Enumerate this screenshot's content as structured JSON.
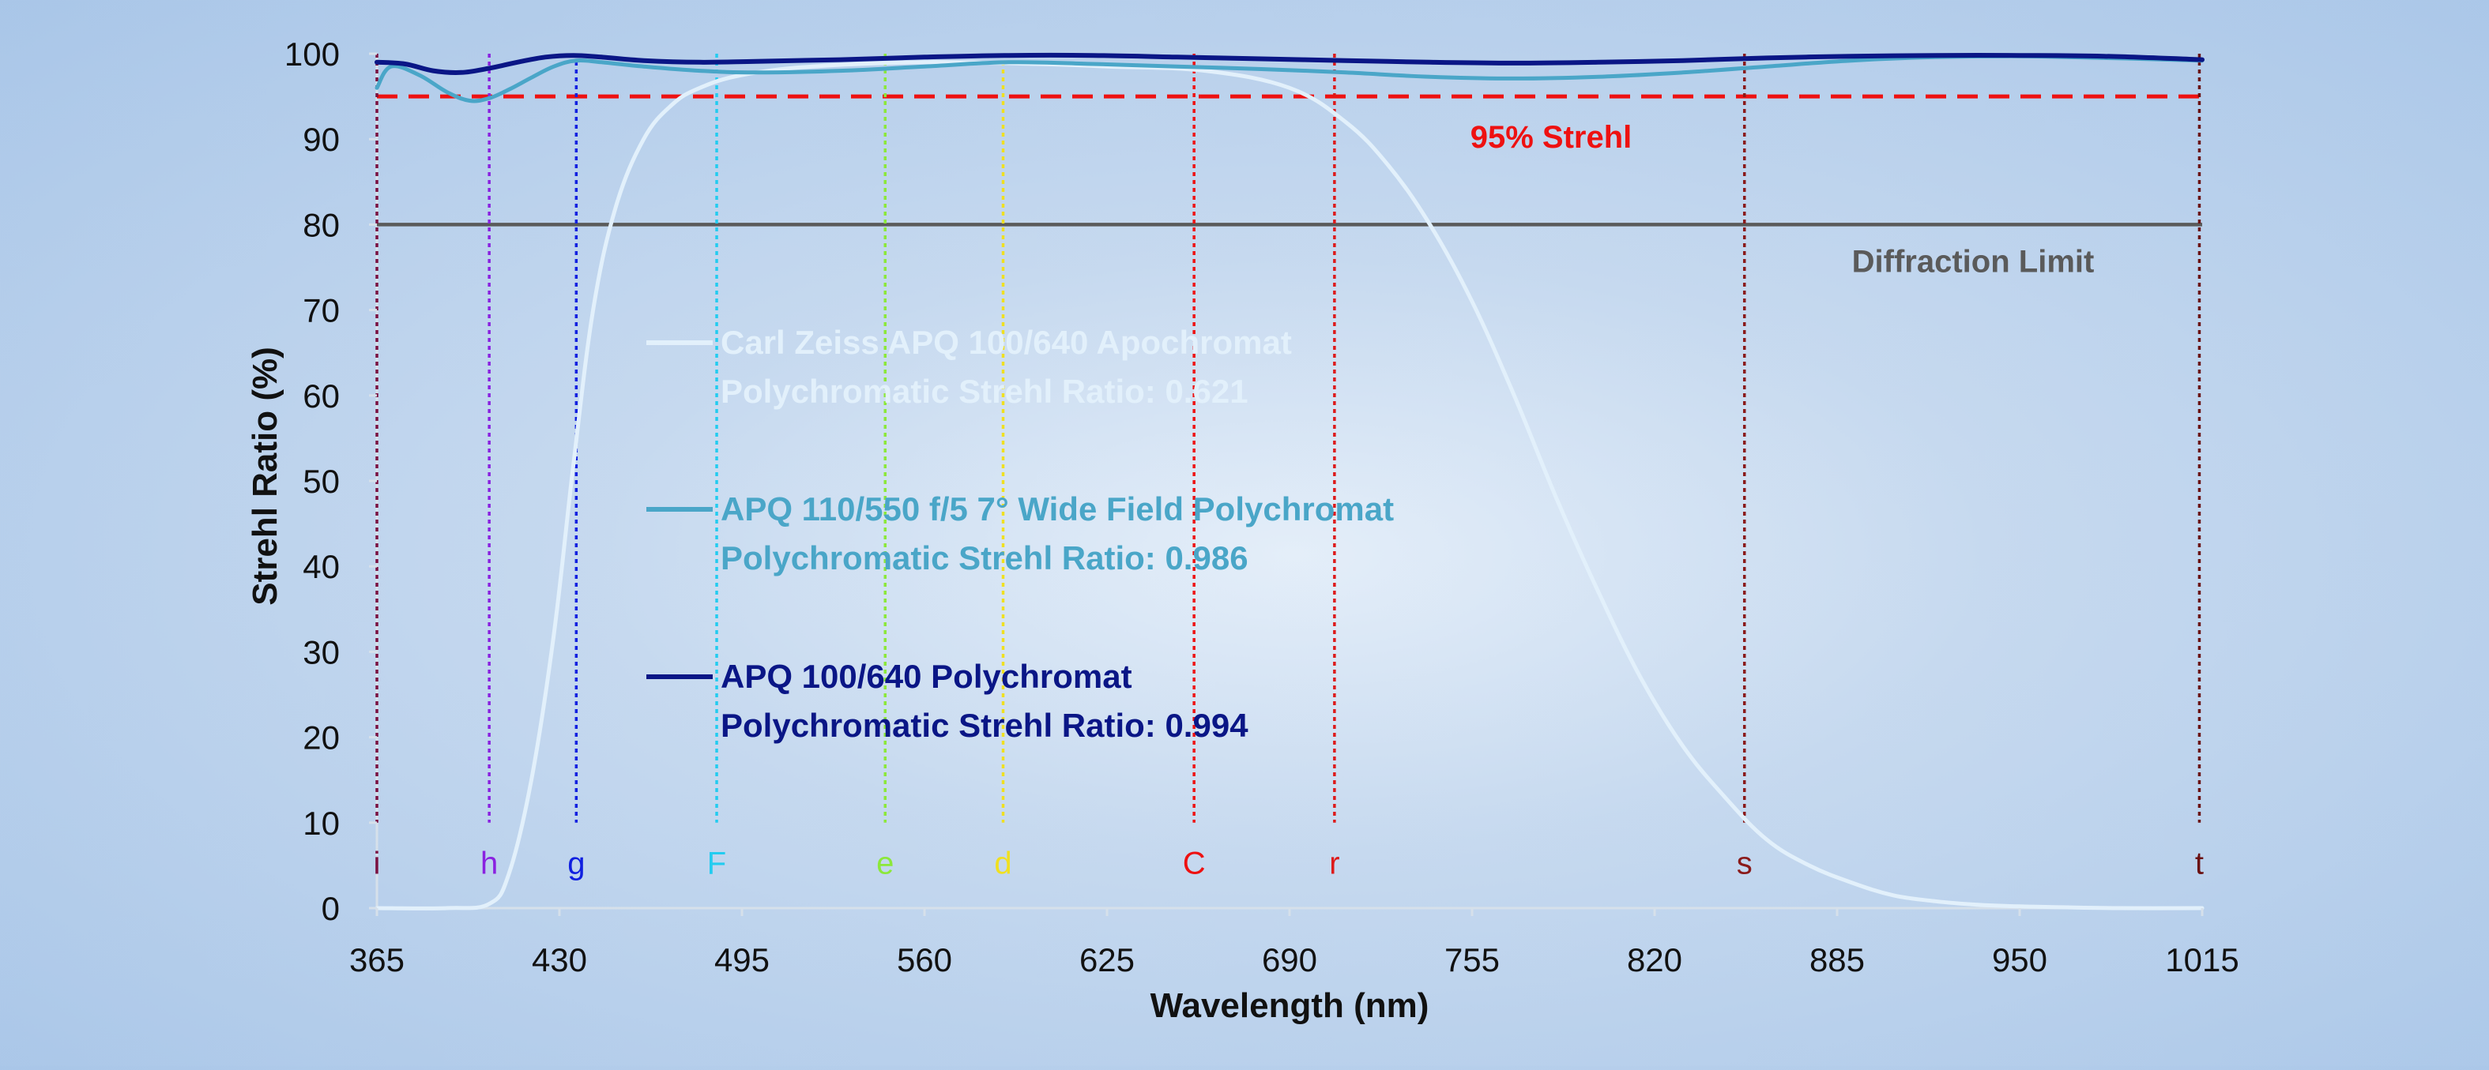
{
  "chart_data": {
    "type": "line",
    "xlabel": "Wavelength (nm)",
    "ylabel": "Strehl Ratio (%)",
    "xlim": [
      365,
      1015
    ],
    "ylim": [
      0,
      100
    ],
    "x_ticks": [
      365,
      430,
      495,
      560,
      625,
      690,
      755,
      820,
      885,
      950,
      1015
    ],
    "y_ticks": [
      0,
      10,
      20,
      30,
      40,
      50,
      60,
      70,
      80,
      90,
      100
    ],
    "grid": false,
    "series": [
      {
        "legend_line1": "Carl Zeiss APQ 100/640 Apochromat",
        "legend_line2": "Polychromatic Strehl Ratio: 0.621",
        "color": "#e2f0fb",
        "x": [
          365,
          390,
          405,
          412,
          420,
          428,
          435,
          442,
          450,
          460,
          470,
          480,
          495,
          520,
          560,
          600,
          625,
          660,
          690,
          710,
          725,
          740,
          755,
          770,
          785,
          800,
          815,
          830,
          845,
          860,
          875,
          890,
          905,
          920,
          935,
          950,
          965,
          985,
          1015
        ],
        "y": [
          0,
          0,
          0.5,
          4,
          15,
          32,
          52,
          70,
          82,
          90,
          94,
          96,
          97.5,
          98.5,
          99,
          98.8,
          98.5,
          98,
          96,
          92,
          87,
          80,
          71,
          60,
          48,
          37,
          27,
          19,
          13,
          8,
          5,
          3,
          1.5,
          0.8,
          0.4,
          0.2,
          0.1,
          0,
          0
        ]
      },
      {
        "legend_line1": "APQ 110/550 f/5 7° Wide Field Polychromat",
        "legend_line2": "Polychromatic Strehl Ratio: 0.986",
        "color": "#4aa6c8",
        "x": [
          365,
          370,
          380,
          390,
          398,
          405,
          412,
          420,
          428,
          436,
          445,
          460,
          480,
          500,
          530,
          560,
          590,
          620,
          650,
          680,
          710,
          740,
          770,
          800,
          830,
          860,
          890,
          920,
          950,
          980,
          1015
        ],
        "y": [
          96,
          98.5,
          97.5,
          95.5,
          94.5,
          94.8,
          95.8,
          97.2,
          98.5,
          99.2,
          99,
          98.5,
          98,
          97.8,
          98,
          98.5,
          99,
          98.8,
          98.5,
          98.2,
          97.8,
          97.3,
          97.1,
          97.3,
          97.8,
          98.5,
          99.2,
          99.6,
          99.7,
          99.5,
          99.2
        ]
      },
      {
        "legend_line1": "APQ 100/640 Polychromat",
        "legend_line2": "Polychromatic Strehl Ratio: 0.994",
        "color": "#0a1686",
        "x": [
          365,
          375,
          385,
          395,
          405,
          415,
          425,
          435,
          445,
          460,
          480,
          500,
          530,
          560,
          590,
          620,
          650,
          680,
          710,
          740,
          770,
          800,
          830,
          860,
          890,
          920,
          950,
          980,
          1015
        ],
        "y": [
          99,
          98.8,
          98,
          97.8,
          98.3,
          99,
          99.6,
          99.8,
          99.6,
          99.2,
          99,
          99.1,
          99.3,
          99.6,
          99.8,
          99.8,
          99.6,
          99.4,
          99.2,
          99,
          98.9,
          99,
          99.2,
          99.5,
          99.7,
          99.8,
          99.8,
          99.7,
          99.3
        ]
      }
    ],
    "reference_lines": [
      {
        "value": 95,
        "label": "95% Strehl",
        "color": "#ee1111",
        "style": "dashed"
      },
      {
        "value": 80,
        "label": "Diffraction Limit",
        "color": "#5a5a5a",
        "style": "solid"
      }
    ],
    "fraunhofer_lines": [
      {
        "label": "i",
        "wavelength": 365,
        "color": "#7a1040"
      },
      {
        "label": "h",
        "wavelength": 405,
        "color": "#8a22e0"
      },
      {
        "label": "g",
        "wavelength": 436,
        "color": "#1020e0"
      },
      {
        "label": "F",
        "wavelength": 486,
        "color": "#22ccf0"
      },
      {
        "label": "e",
        "wavelength": 546,
        "color": "#8ce83a"
      },
      {
        "label": "d",
        "wavelength": 588,
        "color": "#f0e020"
      },
      {
        "label": "C",
        "wavelength": 656,
        "color": "#ee1111"
      },
      {
        "label": "r",
        "wavelength": 706,
        "color": "#dd1a1a"
      },
      {
        "label": "s",
        "wavelength": 852,
        "color": "#8a1a1a"
      },
      {
        "label": "t",
        "wavelength": 1014,
        "color": "#6a1010"
      }
    ]
  }
}
